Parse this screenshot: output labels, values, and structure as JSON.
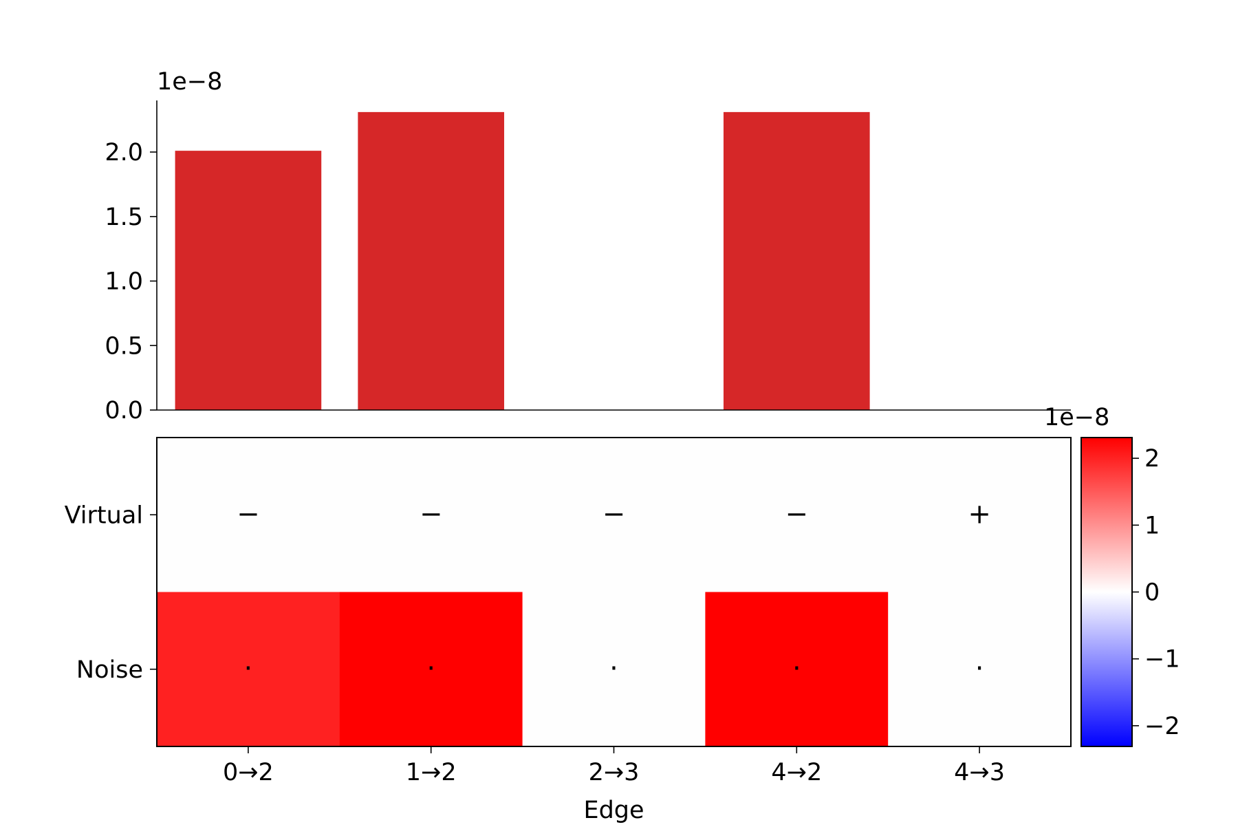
{
  "chart_data": [
    {
      "type": "bar",
      "categories": [
        "0→2",
        "1→2",
        "2→3",
        "4→2",
        "4→3"
      ],
      "values": [
        2.01e-08,
        2.31e-08,
        0,
        2.31e-08,
        0
      ],
      "color": "#d62728",
      "ylim": [
        0,
        2.4e-08
      ],
      "yticks": [
        0.0,
        0.5,
        1.0,
        1.5,
        2.0
      ],
      "ytick_labels": [
        "0.0",
        "0.5",
        "1.0",
        "1.5",
        "2.0"
      ],
      "offset_text": "1e−8",
      "grid": false
    },
    {
      "type": "heatmap",
      "x_categories": [
        "0→2",
        "1→2",
        "2→3",
        "4→2",
        "4→3"
      ],
      "y_categories": [
        "Virtual",
        "Noise"
      ],
      "values": [
        [
          0,
          0,
          0,
          0,
          0
        ],
        [
          2.01e-08,
          2.31e-08,
          0,
          2.31e-08,
          0
        ]
      ],
      "annotations": [
        [
          "−",
          "−",
          "−",
          "−",
          "+"
        ],
        [
          "·",
          "·",
          "·",
          "·",
          "·"
        ]
      ],
      "xlabel": "Edge",
      "colormap": "bwr",
      "colormap_colors": [
        "#0000ff",
        "#ffffff",
        "#ff0000"
      ],
      "vmin": -2.31e-08,
      "vmax": 2.31e-08,
      "colorbar": {
        "ticks": [
          -2,
          -1,
          0,
          1,
          2
        ],
        "tick_labels": [
          "−2",
          "−1",
          "0",
          "1",
          "2"
        ],
        "offset_text": "1e−8"
      }
    }
  ]
}
